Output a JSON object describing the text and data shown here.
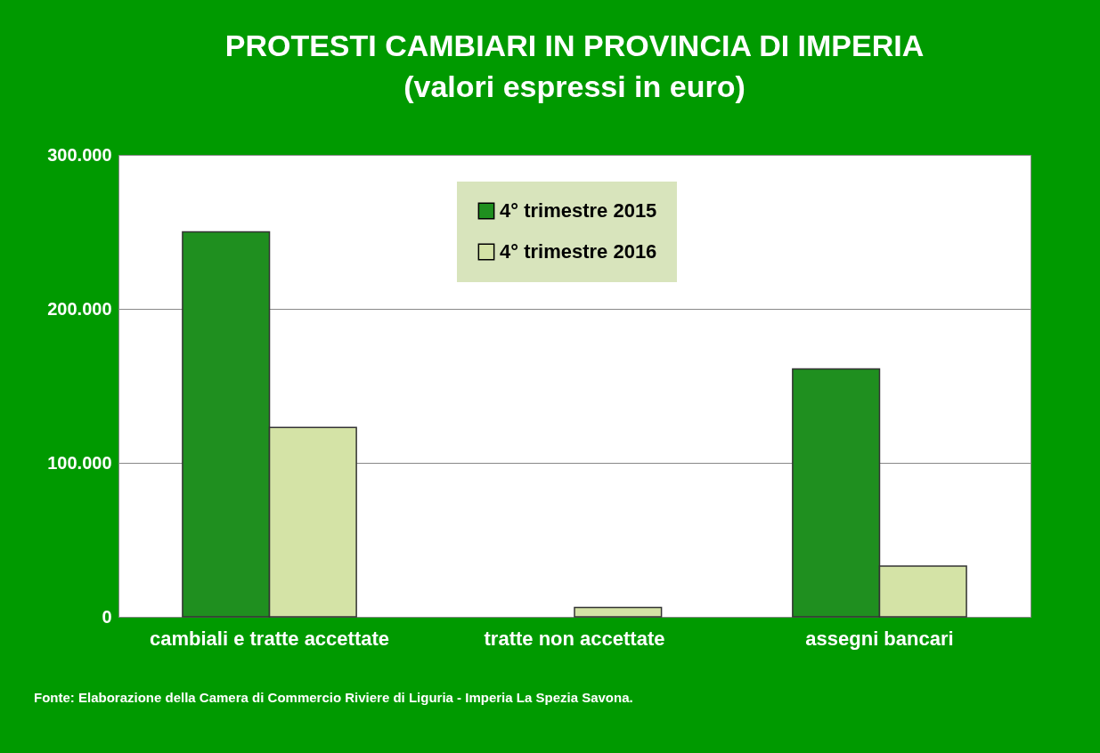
{
  "chart_data": {
    "type": "bar",
    "title": [
      "PROTESTI CAMBIARI IN PROVINCIA DI IMPERIA",
      "(valori espressi in euro)"
    ],
    "categories": [
      "cambiali e tratte accettate",
      "tratte non accettate",
      "assegni bancari"
    ],
    "series": [
      {
        "name": "4° trimestre 2015",
        "color": "#1f8f1f",
        "values": [
          250000,
          null,
          161000
        ]
      },
      {
        "name": "4° trimestre 2016",
        "color": "#d4e3a6",
        "values": [
          123000,
          6000,
          33000
        ]
      }
    ],
    "ylim": [
      0,
      300000
    ],
    "yticks": [
      0,
      {
        "value": 100000,
        "label": "100.000"
      },
      {
        "value": 200000,
        "label": "200.000"
      },
      {
        "value": 300000,
        "label": "300.000"
      }
    ],
    "grid": "y",
    "legend": "top",
    "annotations": [
      "Fonte: Elaborazione  della  Camera di Commercio  Riviere di Liguria - Imperia La Spezia Savona."
    ]
  }
}
